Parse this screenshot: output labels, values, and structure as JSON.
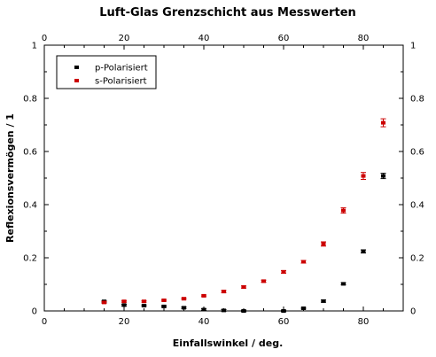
{
  "chart_data": {
    "type": "scatter",
    "title": "Luft-Glas Grenzschicht aus Messwerten",
    "xlabel": "Einfallswinkel / deg.",
    "ylabel": "Reflexionsvermögen / 1",
    "xlim": [
      0,
      90
    ],
    "ylim": [
      0,
      1
    ],
    "x_ticks": [
      "0",
      "20",
      "40",
      "60",
      "80"
    ],
    "y_ticks": [
      "0",
      "0.2",
      "0.4",
      "0.6",
      "0.8",
      "1"
    ],
    "grid": false,
    "legend_position": "top-left",
    "series": [
      {
        "name": "p-Polarisiert",
        "color": "#000000",
        "x": [
          15,
          20,
          25,
          30,
          35,
          40,
          45,
          50,
          60,
          65,
          70,
          75,
          80,
          85
        ],
        "y": [
          0.036,
          0.022,
          0.02,
          0.017,
          0.012,
          0.005,
          0.002,
          0.0,
          0.0,
          0.01,
          0.037,
          0.102,
          0.224,
          0.508
        ],
        "err": [
          0.003,
          0.003,
          0.003,
          0.003,
          0.003,
          0.003,
          0.003,
          0.003,
          0.003,
          0.003,
          0.004,
          0.004,
          0.006,
          0.01
        ]
      },
      {
        "name": "s-Polarisiert",
        "color": "#cc0000",
        "x": [
          15,
          20,
          25,
          30,
          35,
          40,
          45,
          50,
          55,
          60,
          65,
          70,
          75,
          80,
          85
        ],
        "y": [
          0.032,
          0.036,
          0.036,
          0.04,
          0.046,
          0.057,
          0.073,
          0.09,
          0.112,
          0.147,
          0.185,
          0.252,
          0.378,
          0.508,
          0.708
        ],
        "err": [
          0.003,
          0.003,
          0.003,
          0.003,
          0.003,
          0.003,
          0.004,
          0.004,
          0.004,
          0.005,
          0.005,
          0.008,
          0.01,
          0.013,
          0.015
        ]
      }
    ]
  }
}
